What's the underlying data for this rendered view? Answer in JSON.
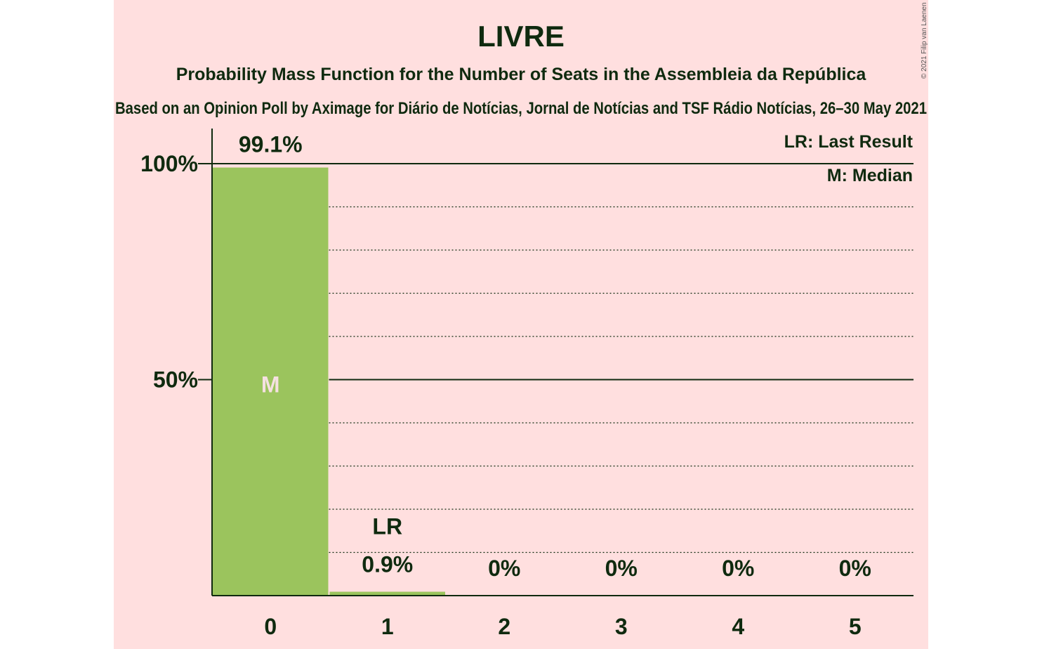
{
  "copyright": "© 2021 Filip van Laenen",
  "colors": {
    "panel_background": "#ffdfdf",
    "bar": "#9bc45d",
    "text": "#0f2a0f",
    "median_label": "#f5e1e1"
  },
  "legend": {
    "last_result": "LR: Last Result",
    "median": "M: Median"
  },
  "chart_data": {
    "type": "bar",
    "title": "LIVRE",
    "subtitle": "Probability Mass Function for the Number of Seats in the Assembleia da República",
    "source": "Based on an Opinion Poll by Aximage for Diário de Notícias, Jornal de Notícias and TSF Rádio Notícias, 26–30 May 2021",
    "categories": [
      "0",
      "1",
      "2",
      "3",
      "4",
      "5"
    ],
    "values": [
      99.1,
      0.9,
      0,
      0,
      0,
      0
    ],
    "value_labels": [
      "99.1%",
      "0.9%",
      "0%",
      "0%",
      "0%",
      "0%"
    ],
    "ylim": [
      0,
      100
    ],
    "y_ticks": [
      {
        "value": 50,
        "label": "50%"
      },
      {
        "value": 100,
        "label": "100%"
      }
    ],
    "minor_grid_step": 10,
    "median_category": "0",
    "median_marker": "M",
    "last_result_category": "1",
    "last_result_marker": "LR",
    "legend_position": "top-right"
  }
}
